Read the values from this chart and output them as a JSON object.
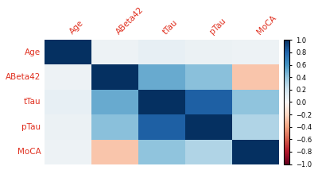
{
  "labels": [
    "Age",
    "ABeta42",
    "tTau",
    "pTau",
    "MoCA"
  ],
  "corr_matrix": [
    [
      1.0,
      0.05,
      0.08,
      0.06,
      0.05
    ],
    [
      0.05,
      1.0,
      0.5,
      0.42,
      -0.28
    ],
    [
      0.08,
      0.5,
      1.0,
      0.82,
      0.4
    ],
    [
      0.06,
      0.42,
      0.82,
      1.0,
      0.3
    ],
    [
      0.05,
      -0.28,
      0.4,
      0.3,
      1.0
    ]
  ],
  "label_color": "#e03020",
  "cmap": "RdBu",
  "vmin": -1,
  "vmax": 1,
  "colorbar_ticks": [
    1,
    0.8,
    0.6,
    0.4,
    0.2,
    0,
    -0.2,
    -0.4,
    -0.6,
    -0.8,
    -1
  ],
  "figsize": [
    4.0,
    2.19
  ],
  "dpi": 100,
  "label_fontsize": 7.5,
  "colorbar_fontsize": 6
}
